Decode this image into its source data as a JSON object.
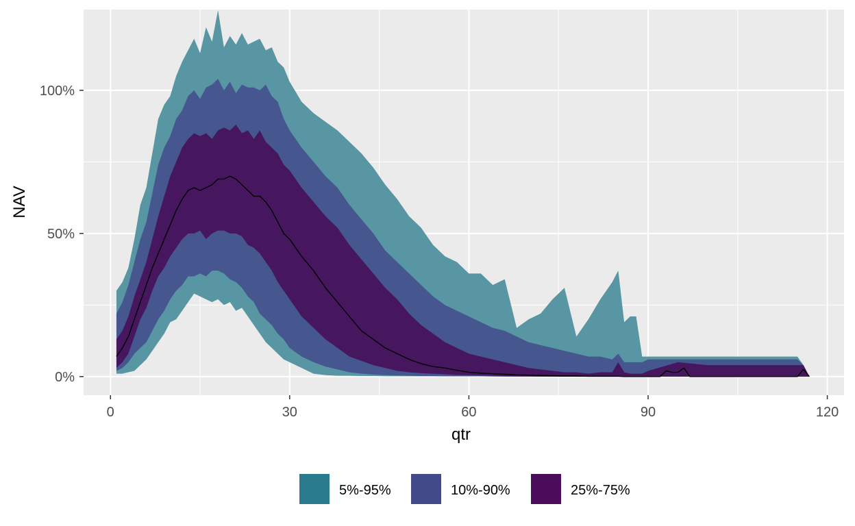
{
  "chart_data": {
    "type": "area",
    "xlabel": "qtr",
    "ylabel": "NAV",
    "xlim": [
      -4.5,
      122.8
    ],
    "ylim": [
      -6.5,
      128.2
    ],
    "x_ticks": [
      0,
      30,
      60,
      90,
      120
    ],
    "x_tick_labels": [
      "0",
      "30",
      "60",
      "90",
      "120"
    ],
    "y_ticks": [
      0,
      50,
      100
    ],
    "y_tick_labels": [
      "0%",
      "50%",
      "100%"
    ],
    "grid": true,
    "legend_position": "bottom",
    "colors": {
      "panel_background": "#ebebeb",
      "grid_major": "#ffffff",
      "band_5_95": "#5896a3",
      "band_10_90": "#45578e",
      "band_25_75": "#46175f",
      "median": "#000000"
    },
    "series": [
      {
        "name": "5%-95%",
        "color": "#2b7b8f",
        "x": [
          1,
          2,
          3,
          4,
          5,
          6,
          7,
          8,
          9,
          10,
          11,
          12,
          13,
          14,
          15,
          16,
          17,
          18,
          19,
          20,
          21,
          22,
          23,
          24,
          25,
          26,
          27,
          28,
          29,
          30,
          32,
          34,
          36,
          38,
          40,
          42,
          44,
          46,
          48,
          50,
          52,
          54,
          56,
          58,
          60,
          62,
          64,
          66,
          68,
          70,
          72,
          74,
          76,
          78,
          80,
          82,
          84,
          85,
          86,
          87,
          88,
          89,
          90,
          95,
          100,
          105,
          110,
          115,
          116,
          117
        ],
        "lower": [
          1,
          1,
          1.5,
          2,
          4,
          6,
          9,
          12,
          15,
          19,
          20,
          23,
          26,
          29,
          28,
          27,
          26,
          27,
          25,
          26,
          23,
          24,
          21,
          18,
          15,
          12,
          10,
          8,
          6,
          5,
          3,
          1,
          0.5,
          0.3,
          0.3,
          0.2,
          0.2,
          0.1,
          0.1,
          0.1,
          0.1,
          0.1,
          0.1,
          0.1,
          0.1,
          0.1,
          0,
          0,
          0,
          0,
          0,
          0,
          0,
          0,
          0,
          0,
          0,
          0,
          0,
          0,
          0,
          0,
          0,
          0,
          0,
          0,
          0,
          0,
          0,
          0
        ],
        "upper": [
          30,
          33,
          38,
          48,
          60,
          66,
          78,
          90,
          95,
          98,
          105,
          110,
          114,
          118,
          113,
          122,
          117,
          128,
          115,
          119,
          116,
          120,
          116,
          117,
          118,
          114,
          115,
          110,
          108,
          103,
          96,
          92,
          89,
          86,
          82,
          78,
          73,
          67,
          62,
          56,
          52,
          46,
          42,
          40,
          36,
          36,
          32,
          34,
          17,
          20,
          22,
          27,
          31,
          14,
          20,
          27,
          33,
          37,
          19,
          21,
          21,
          7,
          7,
          7,
          7,
          7,
          7,
          7,
          4,
          0
        ]
      },
      {
        "name": "10%-90%",
        "color": "#424a8a",
        "x": [
          1,
          2,
          3,
          4,
          5,
          6,
          7,
          8,
          9,
          10,
          11,
          12,
          13,
          14,
          15,
          16,
          17,
          18,
          19,
          20,
          21,
          22,
          23,
          24,
          25,
          26,
          27,
          28,
          29,
          30,
          32,
          34,
          36,
          38,
          40,
          42,
          44,
          46,
          48,
          50,
          52,
          54,
          56,
          58,
          60,
          62,
          64,
          66,
          68,
          70,
          72,
          74,
          76,
          78,
          80,
          82,
          84,
          85,
          86,
          87,
          88,
          89,
          90,
          95,
          100,
          105,
          110,
          115,
          116,
          117
        ],
        "lower": [
          2,
          3,
          5,
          8,
          10,
          12,
          16,
          20,
          23,
          27,
          30,
          32,
          35,
          35,
          36,
          35,
          37,
          37,
          36,
          34,
          33,
          31,
          28,
          26,
          22,
          20,
          18,
          15,
          13,
          10,
          7,
          5,
          3.5,
          2.5,
          1.5,
          1,
          0.7,
          0.5,
          0.4,
          0.3,
          0.2,
          0.2,
          0.1,
          0.1,
          0.1,
          0.1,
          0.1,
          0,
          0,
          0,
          0,
          0,
          0,
          0,
          0,
          0,
          0,
          0,
          0,
          0,
          0,
          0,
          0,
          0,
          0,
          0,
          0,
          0,
          0,
          0
        ],
        "upper": [
          22,
          26,
          32,
          40,
          48,
          54,
          64,
          74,
          80,
          84,
          90,
          93,
          98,
          100,
          97,
          101,
          102,
          104,
          100,
          103,
          99,
          102,
          101,
          101,
          100,
          102,
          98,
          96,
          90,
          86,
          80,
          75,
          70,
          66,
          60,
          55,
          50,
          44,
          40,
          36,
          32,
          28,
          25,
          23,
          21,
          19,
          17,
          16,
          14,
          12,
          11,
          10,
          9,
          8,
          7,
          7,
          6,
          8,
          5,
          5,
          5,
          5,
          6,
          6,
          6,
          6,
          6,
          6,
          4,
          0
        ]
      },
      {
        "name": "25%-75%",
        "color": "#4b0d5b",
        "x": [
          1,
          2,
          3,
          4,
          5,
          6,
          7,
          8,
          9,
          10,
          11,
          12,
          13,
          14,
          15,
          16,
          17,
          18,
          19,
          20,
          21,
          22,
          23,
          24,
          25,
          26,
          27,
          28,
          29,
          30,
          32,
          34,
          36,
          38,
          40,
          42,
          44,
          46,
          48,
          50,
          52,
          54,
          56,
          58,
          60,
          62,
          64,
          66,
          68,
          70,
          72,
          74,
          76,
          78,
          80,
          82,
          84,
          85,
          86,
          87,
          88,
          89,
          90,
          95,
          100,
          105,
          110,
          115,
          116,
          117
        ],
        "lower": [
          3,
          5,
          8,
          14,
          20,
          24,
          30,
          35,
          38,
          42,
          45,
          48,
          50,
          50,
          51,
          48,
          50,
          51,
          51,
          50,
          50,
          49,
          46,
          45,
          43,
          40,
          37,
          33,
          30,
          27,
          21,
          17,
          13,
          10,
          7,
          5.5,
          4,
          3,
          2,
          1.5,
          1.2,
          1,
          0.8,
          0.6,
          0.5,
          0.4,
          0.3,
          0.2,
          0.1,
          0.1,
          0,
          0,
          0,
          0,
          0,
          0,
          0,
          0,
          0,
          0,
          0,
          0,
          0,
          0,
          0,
          0,
          0,
          0,
          0,
          0
        ],
        "upper": [
          13,
          16,
          21,
          28,
          34,
          40,
          48,
          56,
          63,
          70,
          75,
          80,
          83,
          85,
          84,
          85,
          83,
          86,
          87,
          86,
          88,
          85,
          86,
          83,
          86,
          82,
          80,
          78,
          74,
          72,
          66,
          61,
          56,
          52,
          46,
          41,
          36,
          31,
          27,
          22,
          18,
          15,
          12,
          10,
          8,
          7,
          6,
          5,
          4,
          3,
          2.5,
          2,
          1.5,
          1.5,
          1,
          1.5,
          1.5,
          5,
          1.5,
          1,
          1,
          1,
          2,
          5,
          4,
          4,
          4,
          4,
          4,
          0
        ]
      }
    ],
    "median": {
      "x": [
        1,
        2,
        3,
        4,
        5,
        6,
        7,
        8,
        9,
        10,
        11,
        12,
        13,
        14,
        15,
        16,
        17,
        18,
        19,
        20,
        21,
        22,
        23,
        24,
        25,
        26,
        27,
        28,
        29,
        30,
        32,
        34,
        36,
        38,
        40,
        42,
        44,
        46,
        48,
        50,
        52,
        54,
        56,
        58,
        60,
        62,
        64,
        66,
        68,
        70,
        72,
        74,
        76,
        78,
        80,
        82,
        84,
        85,
        86,
        88,
        90,
        92,
        93,
        94,
        95,
        96,
        97,
        100,
        105,
        110,
        115,
        116,
        117
      ],
      "y": [
        7,
        10,
        14,
        20,
        26,
        32,
        38,
        43,
        48,
        53,
        58,
        62,
        65,
        66,
        65,
        66,
        67,
        69,
        69,
        70,
        69,
        67,
        65,
        63,
        63,
        61,
        58,
        54,
        50,
        48,
        42,
        37,
        31,
        26,
        21,
        16,
        13,
        10,
        8,
        6,
        4.5,
        3.5,
        3,
        2.2,
        1.5,
        1.2,
        1,
        0.8,
        0.6,
        0.5,
        0.4,
        0.3,
        0.2,
        0.2,
        0.1,
        0.1,
        0.1,
        0.1,
        0,
        0,
        0,
        0,
        2,
        1.5,
        1.5,
        3,
        0,
        0,
        0,
        0,
        0,
        2.5,
        0
      ]
    }
  }
}
